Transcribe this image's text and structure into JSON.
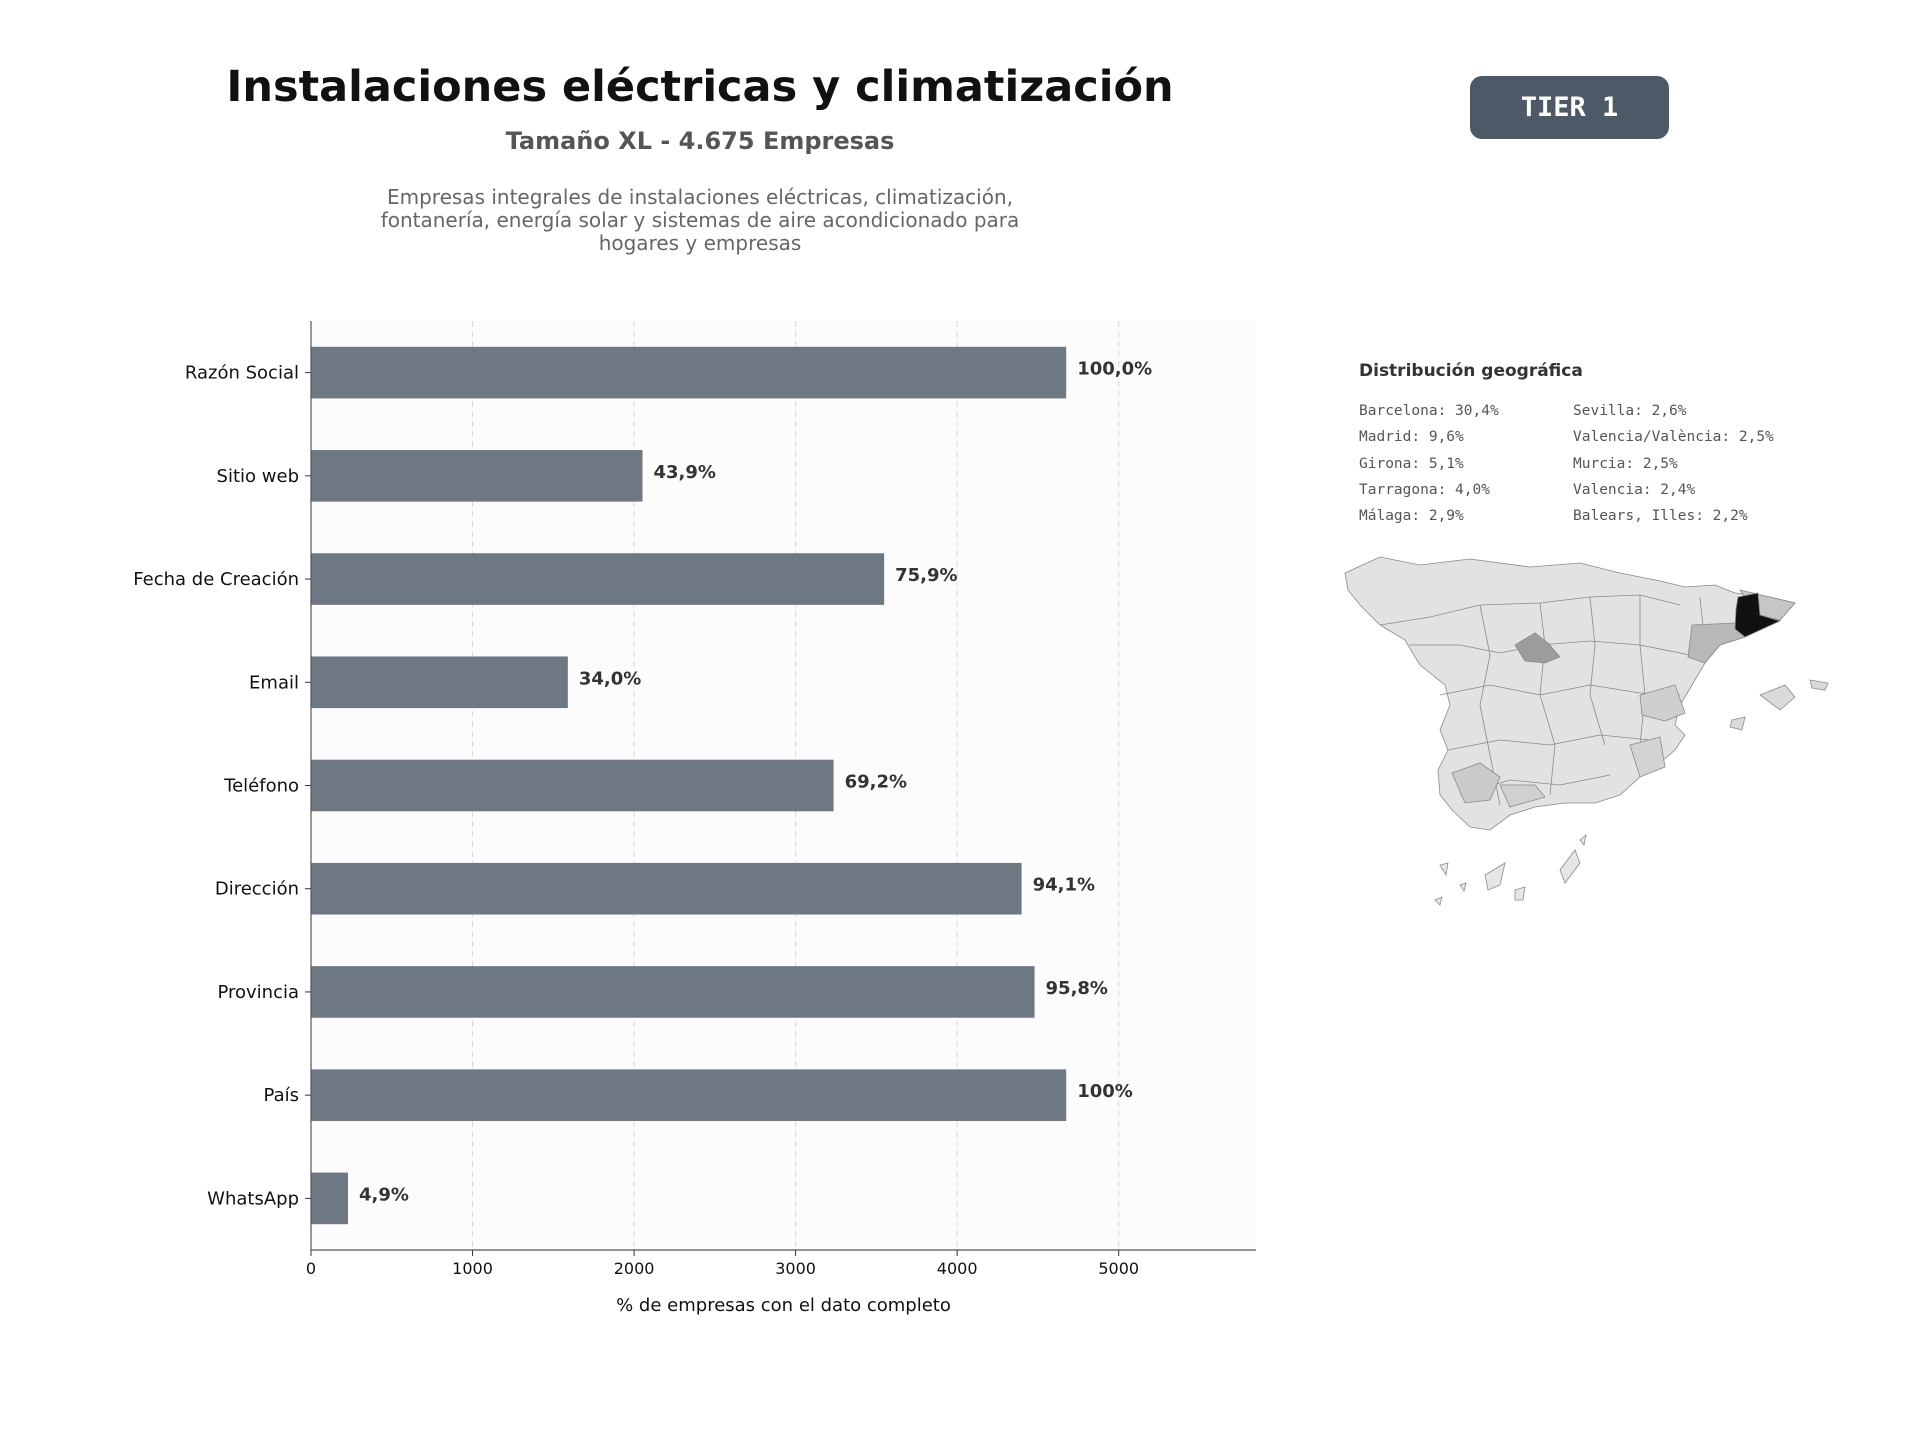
{
  "header": {
    "title": "Instalaciones eléctricas y climatización",
    "subtitle": "Tamaño XL - 4.675 Empresas",
    "description": "Empresas integrales de instalaciones eléctricas, climatización, fontanería, energía solar y sistemas de aire acondicionado para hogares y empresas",
    "tier": "TIER 1"
  },
  "chart_data": {
    "type": "bar",
    "orientation": "horizontal",
    "categories": [
      "Razón Social",
      "Sitio web",
      "Fecha de Creación",
      "Email",
      "Teléfono",
      "Dirección",
      "Provincia",
      "País",
      "WhatsApp"
    ],
    "values": [
      4675,
      2052,
      3548,
      1590,
      3235,
      4399,
      4479,
      4675,
      229
    ],
    "data_labels": [
      "100,0%",
      "43,9%",
      "75,9%",
      "34,0%",
      "69,2%",
      "94,1%",
      "95,8%",
      "100%",
      "4,9%"
    ],
    "xlabel": "% de empresas con el dato completo",
    "ylabel": "",
    "xlim": [
      0,
      5850
    ],
    "xticks": [
      0,
      1000,
      2000,
      3000,
      4000,
      5000
    ],
    "grid": "vertical dashed",
    "bar_color": "#6e7882"
  },
  "geo": {
    "title": "Distribución geográfica",
    "col1": [
      "Barcelona: 30,4%",
      "Madrid: 9,6%",
      "Girona: 5,1%",
      "Tarragona: 4,0%",
      "Málaga: 2,9%"
    ],
    "col2": [
      "Sevilla: 2,6%",
      "Valencia/València: 2,5%",
      "Murcia: 2,5%",
      "Valencia: 2,4%",
      "Balears, Illes: 2,2%"
    ]
  }
}
